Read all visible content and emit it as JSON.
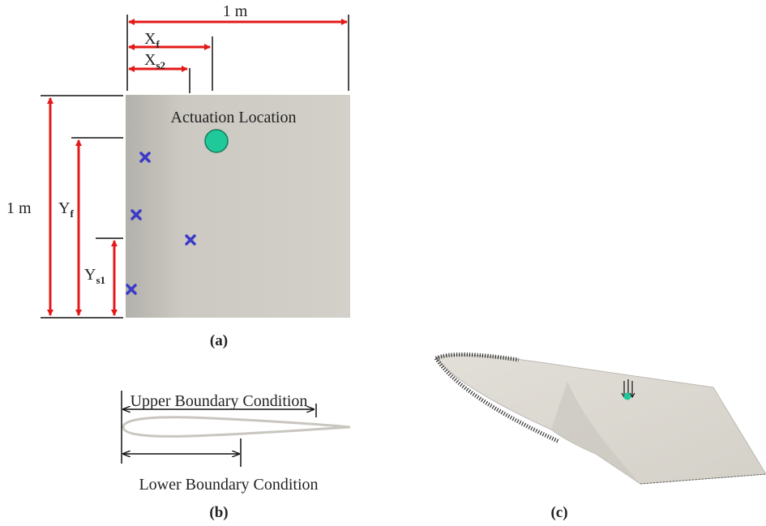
{
  "panel_a": {
    "caption": "(a)",
    "width_label": "1 m",
    "height_label": "1 m",
    "actuation_label": "Actuation Location",
    "x_f": {
      "main": "X",
      "sub": "f"
    },
    "x_s2": {
      "main": "X",
      "sub": "s2"
    },
    "y_f": {
      "main": "Y",
      "sub": "f"
    },
    "y_s1": {
      "main": "Y",
      "sub": "s1"
    }
  },
  "panel_b": {
    "caption": "(b)",
    "upper": "Upper Boundary Condition",
    "lower": "Lower Boundary Condition"
  },
  "panel_c": {
    "caption": "(c)"
  }
}
